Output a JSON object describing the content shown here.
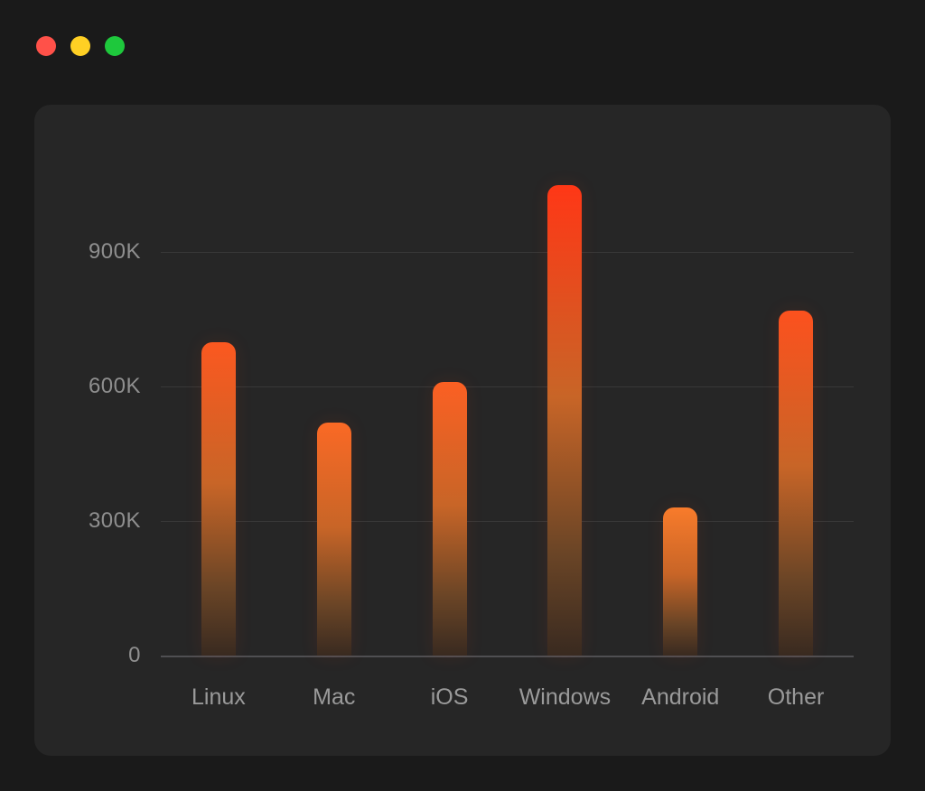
{
  "window": {
    "controls": [
      {
        "name": "close"
      },
      {
        "name": "minimize"
      },
      {
        "name": "zoom"
      }
    ]
  },
  "colors": {
    "page_bg": "#1a1a1a",
    "card_bg": "#262626",
    "grid": "#383838",
    "axis_line": "#4f4f52",
    "tick_text": "#8f8f8f",
    "label_text": "#9a9a9a",
    "traffic_red": "#ff5149",
    "traffic_yellow": "#ffd024",
    "traffic_green": "#1ec83c",
    "bar_top_red": "#ff3214",
    "bar_top_orange": "#f59a35",
    "bar_mid": "#c86527",
    "bar_low": "#6b4526",
    "bar_base": "#392a20"
  },
  "chart_data": {
    "type": "bar",
    "title": "",
    "xlabel": "",
    "ylabel": "",
    "unit": "K",
    "categories": [
      "Linux",
      "Mac",
      "iOS",
      "Windows",
      "Android",
      "Other"
    ],
    "values": [
      700,
      520,
      610,
      1050,
      330,
      770
    ],
    "yticks": [
      {
        "label": "0",
        "value": 0
      },
      {
        "label": "300K",
        "value": 300
      },
      {
        "label": "600K",
        "value": 600
      },
      {
        "label": "900K",
        "value": 900
      }
    ],
    "ylim": [
      0,
      1100
    ],
    "grid": "horizontal",
    "legend": "none",
    "bar_style": "vertical gradient, rounded top caps, taller bars redder at top"
  }
}
